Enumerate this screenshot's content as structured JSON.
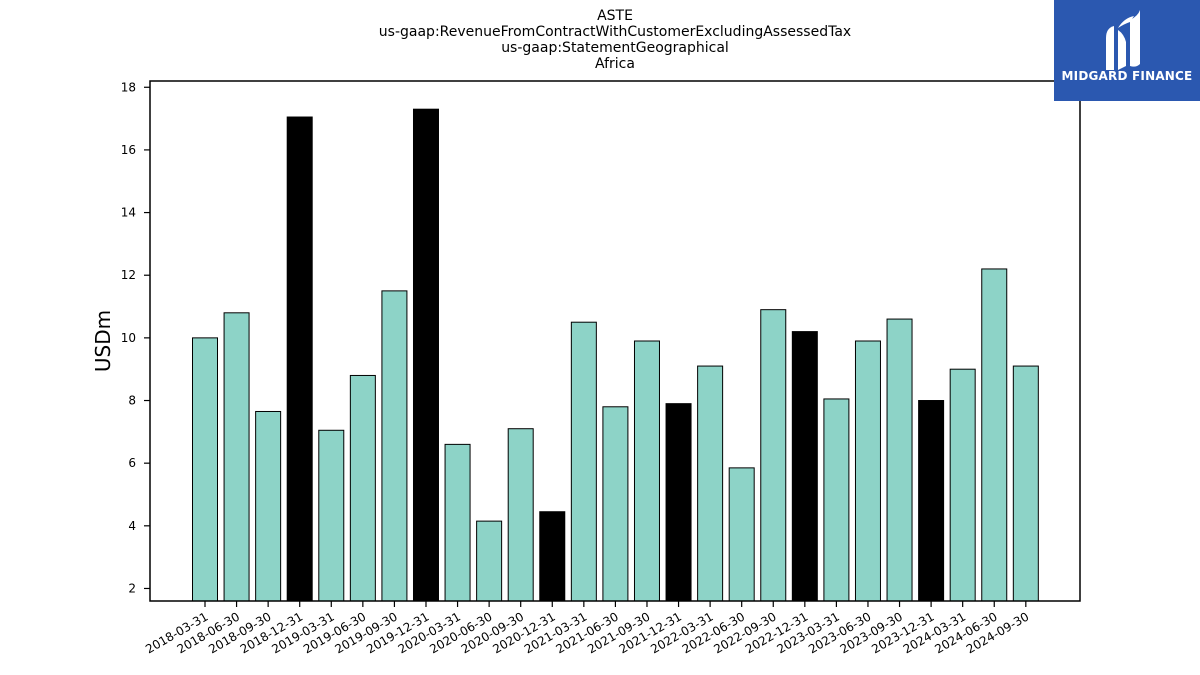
{
  "chart_data": {
    "type": "bar",
    "title_lines": [
      "ASTE",
      "us-gaap:RevenueFromContractWithCustomerExcludingAssessedTax",
      "us-gaap:StatementGeographical",
      "Africa"
    ],
    "xlabel": "",
    "ylabel": "USDm",
    "ylim": [
      1.6,
      18.2
    ],
    "yticks": [
      2,
      4,
      6,
      8,
      10,
      12,
      14,
      16,
      18
    ],
    "categories": [
      "2018-03-31",
      "2018-06-30",
      "2018-09-30",
      "2018-12-31",
      "2019-03-31",
      "2019-06-30",
      "2019-09-30",
      "2019-12-31",
      "2020-03-31",
      "2020-06-30",
      "2020-09-30",
      "2020-12-31",
      "2021-03-31",
      "2021-06-30",
      "2021-09-30",
      "2021-12-31",
      "2022-03-31",
      "2022-06-30",
      "2022-09-30",
      "2022-12-31",
      "2023-03-31",
      "2023-06-30",
      "2023-09-30",
      "2023-12-31",
      "2024-03-31",
      "2024-06-30",
      "2024-09-30"
    ],
    "values": [
      10.0,
      10.8,
      7.65,
      17.05,
      7.05,
      8.8,
      11.5,
      17.3,
      6.6,
      4.15,
      7.1,
      4.45,
      10.5,
      7.8,
      9.9,
      7.9,
      9.1,
      5.85,
      10.9,
      10.2,
      8.05,
      9.9,
      10.6,
      8.0,
      9.0,
      12.2,
      9.1
    ],
    "highlight_year_end": true,
    "colors": {
      "regular": "#8dd3c7",
      "year_end": "#000000",
      "edge": "#000000"
    },
    "grid": false,
    "legend": "none"
  },
  "logo": {
    "text": "MIDGARD FINANCE",
    "color": "#2b58b0"
  }
}
